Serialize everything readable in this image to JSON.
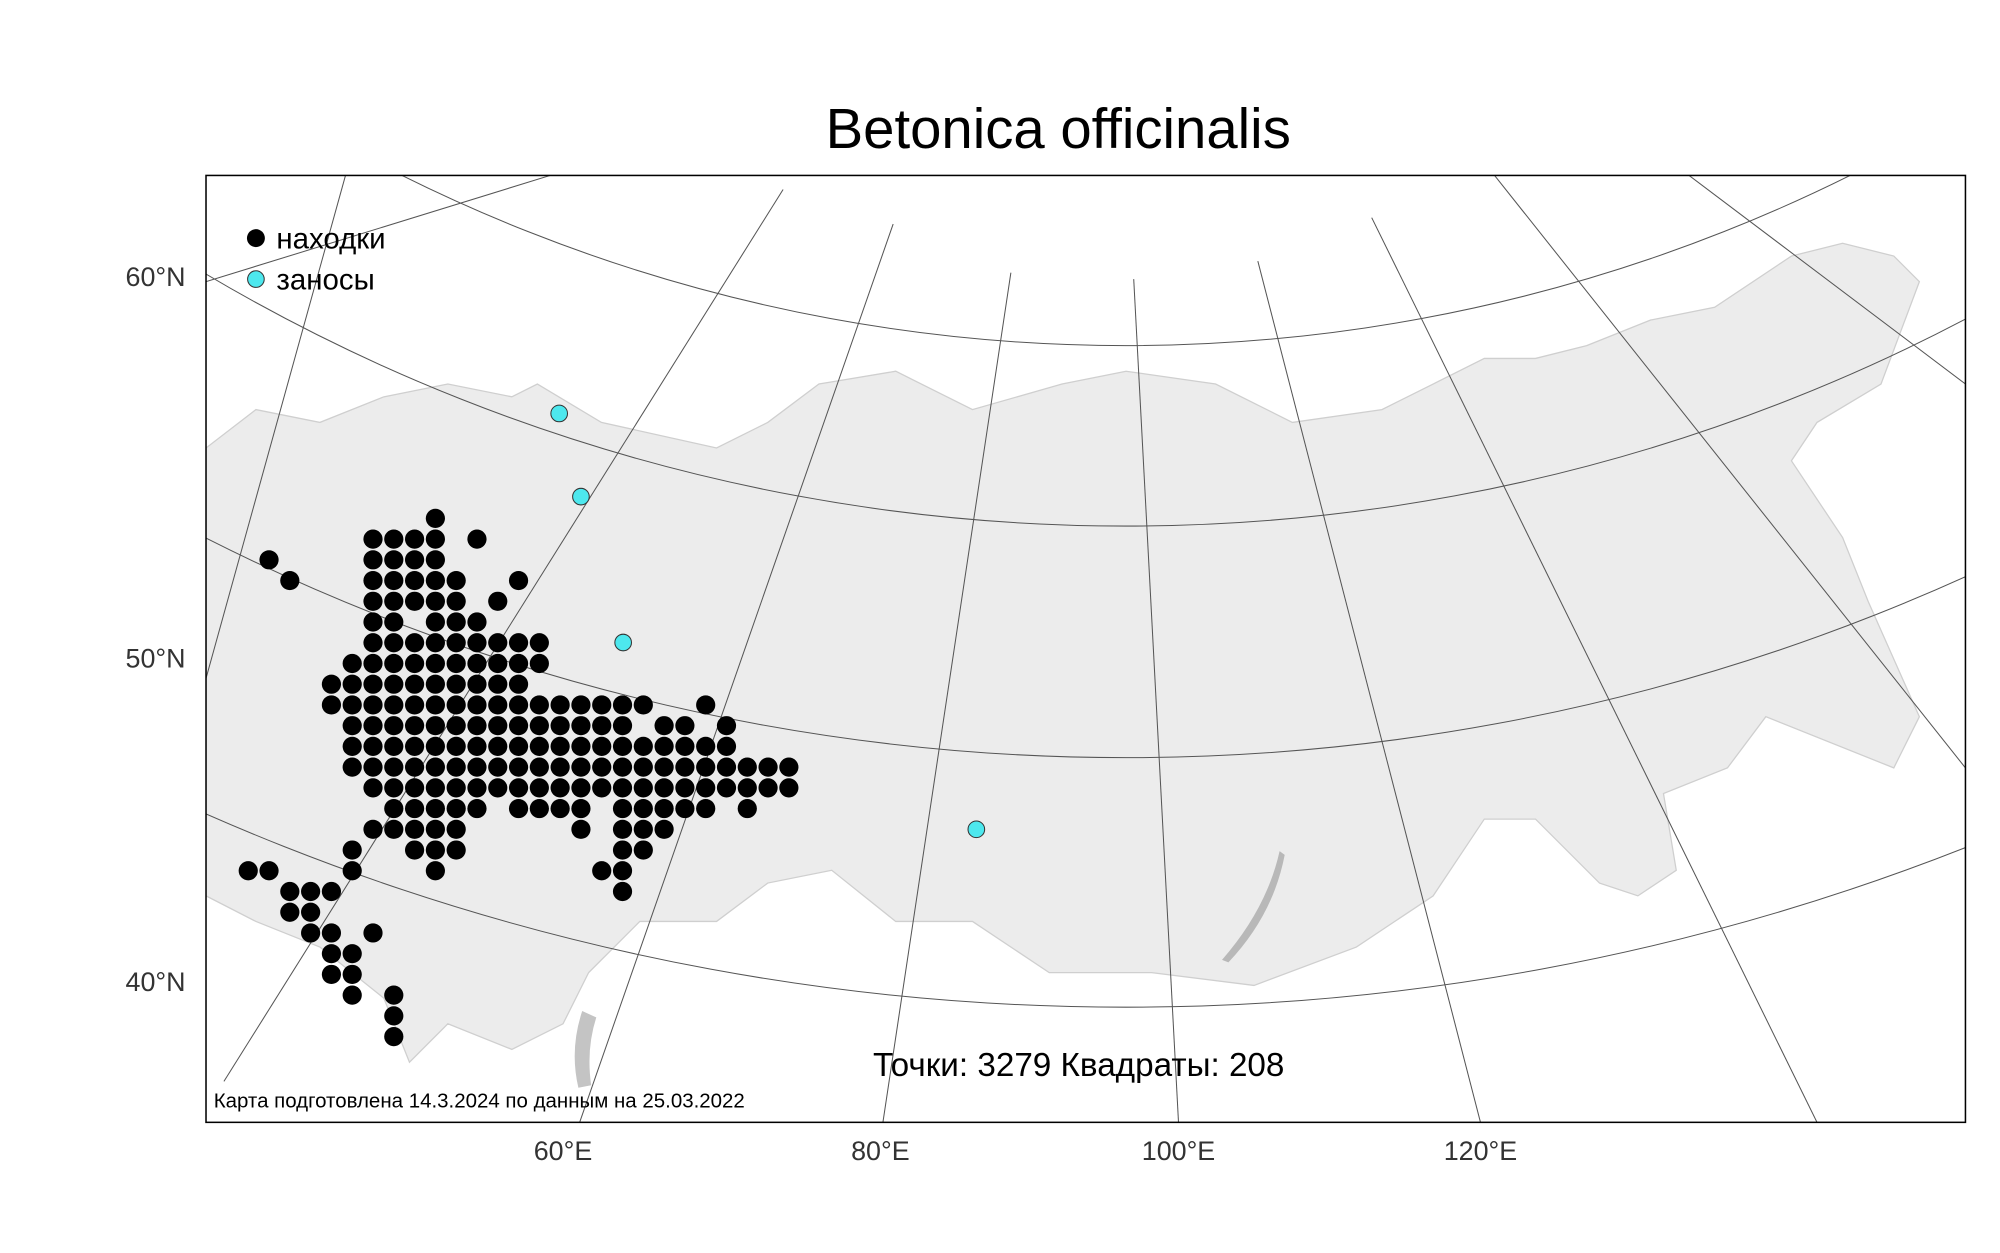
{
  "header": {
    "title": "Betonica officinalis"
  },
  "legend": [
    {
      "label": "находки",
      "color": "#000000"
    },
    {
      "label": "заносы",
      "color": "#4de8ee"
    }
  ],
  "axes": {
    "lat_labels": [
      "60°N",
      "50°N",
      "40°N"
    ],
    "lon_labels": [
      "60°E",
      "80°E",
      "100°E",
      "120°E"
    ]
  },
  "notes": {
    "counts": "Точки: 3279 Квадраты: 208",
    "credit": "Карта подготовлена 14.3.2024 по данным на 25.03.2022"
  }
}
